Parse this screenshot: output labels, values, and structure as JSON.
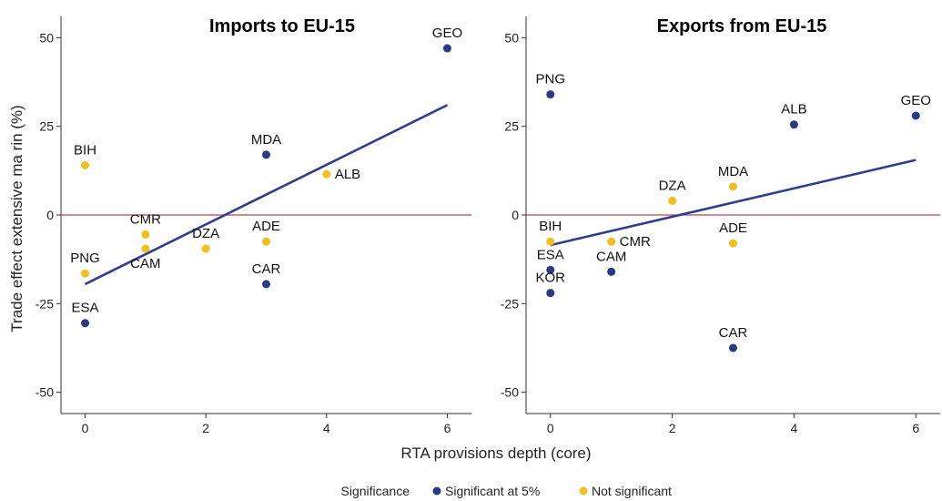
{
  "figure": {
    "xlabel": "RTA provisions depth (core)",
    "ylabel": "Trade effect extensive ma rin (%)"
  },
  "legend": {
    "title": "Significance",
    "items": [
      {
        "label": "Significant at 5%",
        "color": "#2a3a85"
      },
      {
        "label": "Not significant",
        "color": "#f0c020"
      }
    ]
  },
  "chart_data": [
    {
      "type": "scatter",
      "title": "Imports to EU-15",
      "xlim": [
        -0.4,
        6.4
      ],
      "ylim": [
        -56,
        56
      ],
      "xticks": [
        0,
        2,
        4,
        6
      ],
      "yticks": [
        50,
        25,
        0,
        -25,
        -50
      ],
      "ytick_labels": [
        "50",
        "25",
        "0",
        "-25",
        "-50"
      ],
      "reference_line": {
        "y": 0,
        "color": "#c0404a"
      },
      "fit_line": {
        "x": [
          0,
          6
        ],
        "y": [
          -19.5,
          31
        ],
        "color": "#2f3f8f"
      },
      "points": [
        {
          "label": "GEO",
          "x": 6.0,
          "y": 47,
          "significant": true
        },
        {
          "label": "BIH",
          "x": 0.0,
          "y": 14,
          "significant": false
        },
        {
          "label": "MDA",
          "x": 3.0,
          "y": 17,
          "significant": true
        },
        {
          "label": "ALB",
          "x": 4.0,
          "y": 11.5,
          "significant": false
        },
        {
          "label": "CMR",
          "x": 1.0,
          "y": -5.5,
          "significant": false
        },
        {
          "label": "CAM",
          "x": 1.0,
          "y": -9.5,
          "significant": false
        },
        {
          "label": "DZA",
          "x": 2.0,
          "y": -9.5,
          "significant": false
        },
        {
          "label": "ADE",
          "x": 3.0,
          "y": -7.5,
          "significant": false
        },
        {
          "label": "PNG",
          "x": 0.0,
          "y": -16.5,
          "significant": false
        },
        {
          "label": "CAR",
          "x": 3.0,
          "y": -19.5,
          "significant": true
        },
        {
          "label": "ESA",
          "x": 0.0,
          "y": -30.5,
          "significant": true
        }
      ]
    },
    {
      "type": "scatter",
      "title": "Exports from EU-15",
      "xlim": [
        -0.4,
        6.4
      ],
      "ylim": [
        -56,
        56
      ],
      "xticks": [
        0,
        2,
        4,
        6
      ],
      "yticks": [
        50,
        25,
        0,
        -25,
        -50
      ],
      "ytick_labels": [
        "50",
        "25",
        "0",
        "-25",
        "-50"
      ],
      "reference_line": {
        "y": 0,
        "color": "#c0404a"
      },
      "fit_line": {
        "x": [
          0,
          6
        ],
        "y": [
          -8.5,
          15.5
        ],
        "color": "#2f3f8f"
      },
      "points": [
        {
          "label": "PNG",
          "x": 0.0,
          "y": 34,
          "significant": true
        },
        {
          "label": "GEO",
          "x": 6.0,
          "y": 28,
          "significant": true
        },
        {
          "label": "ALB",
          "x": 4.0,
          "y": 25.5,
          "significant": true
        },
        {
          "label": "MDA",
          "x": 3.0,
          "y": 8,
          "significant": false
        },
        {
          "label": "DZA",
          "x": 2.0,
          "y": 4,
          "significant": false
        },
        {
          "label": "BIH",
          "x": 0.0,
          "y": -7.5,
          "significant": false
        },
        {
          "label": "CMR",
          "x": 1.0,
          "y": -7.5,
          "significant": false
        },
        {
          "label": "ADE",
          "x": 3.0,
          "y": -8,
          "significant": false
        },
        {
          "label": "ESA",
          "x": 0.0,
          "y": -15.5,
          "significant": true
        },
        {
          "label": "CAM",
          "x": 1.0,
          "y": -16,
          "significant": true
        },
        {
          "label": "KOR",
          "x": 0.0,
          "y": -22,
          "significant": true
        },
        {
          "label": "CAR",
          "x": 3.0,
          "y": -37.5,
          "significant": true
        }
      ]
    }
  ]
}
